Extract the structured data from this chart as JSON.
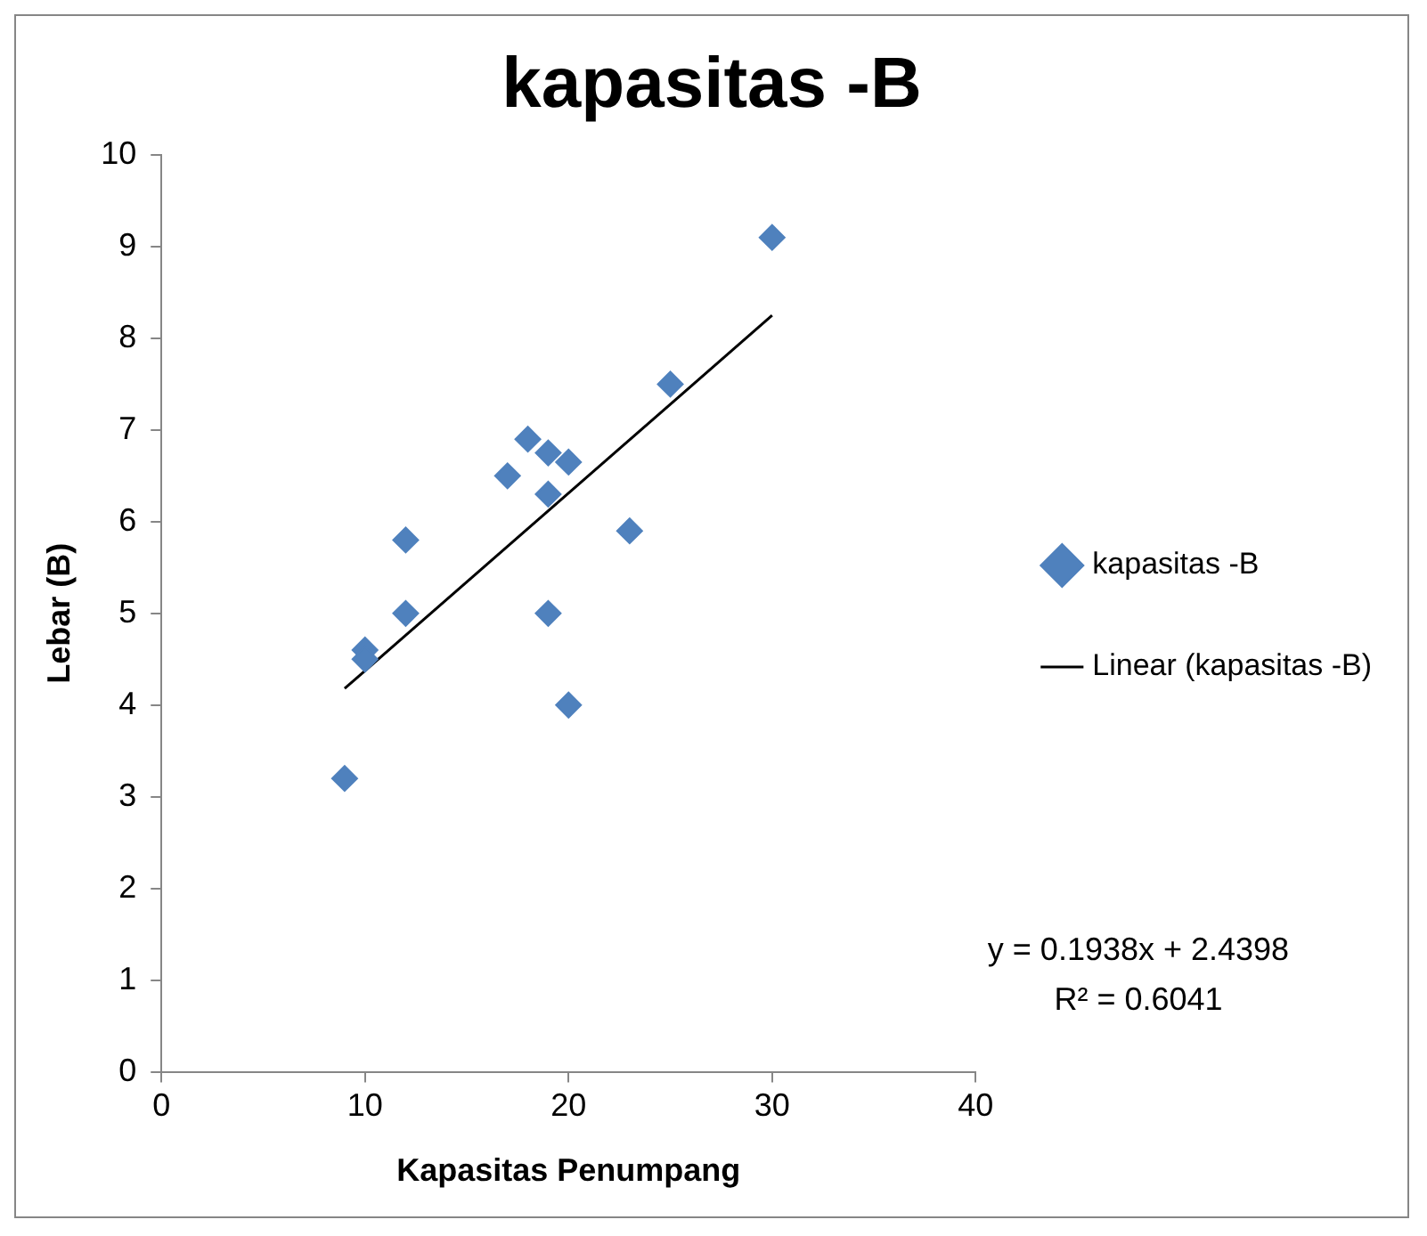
{
  "chart_data": {
    "type": "scatter",
    "title": "kapasitas -B",
    "xlabel": "Kapasitas Penumpang",
    "ylabel": "Lebar (B)",
    "x": [
      9,
      10,
      10,
      12,
      12,
      17,
      18,
      19,
      20,
      19,
      19,
      20,
      23,
      25,
      30
    ],
    "series": [
      {
        "name": "kapasitas -B",
        "color": "#4f81bd",
        "marker": "diamond",
        "values": [
          3.2,
          4.6,
          4.5,
          5.8,
          5.0,
          6.5,
          6.9,
          6.75,
          6.65,
          6.3,
          5.0,
          4.0,
          5.9,
          7.5,
          9.1
        ]
      },
      {
        "name": "Linear (kapasitas -B)",
        "type": "line",
        "color": "#000000",
        "marker": "none",
        "x": [
          9,
          30
        ],
        "values": [
          4.18,
          8.25
        ]
      }
    ],
    "xlim": [
      0,
      40
    ],
    "xticks": [
      0,
      10,
      20,
      30,
      40
    ],
    "ylim": [
      0,
      10
    ],
    "yticks": [
      0,
      1,
      2,
      3,
      4,
      5,
      6,
      7,
      8,
      9,
      10
    ],
    "grid": false,
    "legend": "right",
    "annotations": [
      "y = 0.1938x + 2.4398",
      "R² = 0.6041"
    ]
  }
}
